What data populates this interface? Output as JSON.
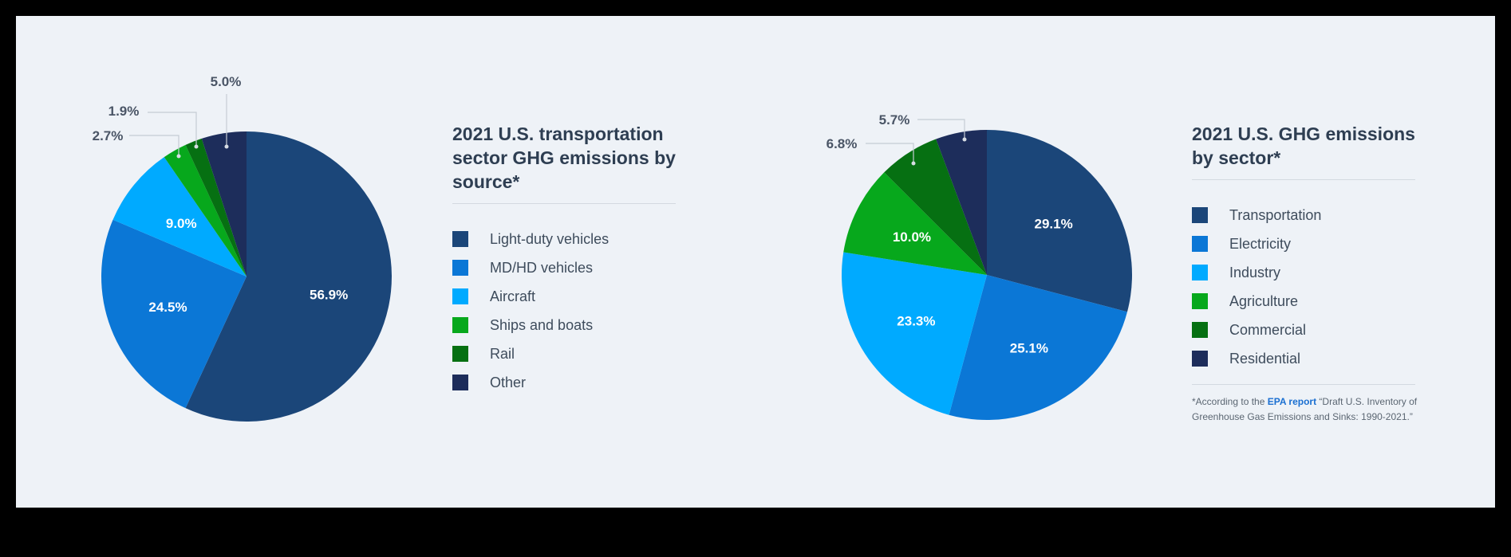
{
  "chart_data": [
    {
      "type": "pie",
      "title": "2021 U.S. transportation sector GHG emissions by source*",
      "categories": [
        "Light-duty vehicles",
        "MD/HD vehicles",
        "Aircraft",
        "Ships and boats",
        "Rail",
        "Other"
      ],
      "values": [
        56.9,
        24.5,
        9.0,
        2.7,
        1.9,
        5.0
      ],
      "labels": [
        "56.9%",
        "24.5%",
        "9.0%",
        "2.7%",
        "1.9%",
        "5.0%"
      ],
      "colors": [
        "#1b4679",
        "#0b77d6",
        "#00aaff",
        "#07a81c",
        "#067012",
        "#1d2d5b"
      ],
      "legend": "right"
    },
    {
      "type": "pie",
      "title": "2021 U.S. GHG emissions by sector*",
      "categories": [
        "Transportation",
        "Electricity",
        "Industry",
        "Agriculture",
        "Commercial",
        "Residential"
      ],
      "values": [
        29.1,
        25.1,
        23.3,
        10.0,
        6.8,
        5.7
      ],
      "labels": [
        "29.1%",
        "25.1%",
        "23.3%",
        "10.0%",
        "6.8%",
        "5.7%"
      ],
      "colors": [
        "#1b4679",
        "#0b77d6",
        "#00aaff",
        "#07a81c",
        "#067012",
        "#1d2d5b"
      ],
      "legend": "right"
    }
  ],
  "footnote": {
    "prefix": "*According to the ",
    "link": "EPA report",
    "suffix": " “Draft U.S. Inventory of Greenhouse Gas Emissions and Sinks: 1990-2021.”"
  }
}
